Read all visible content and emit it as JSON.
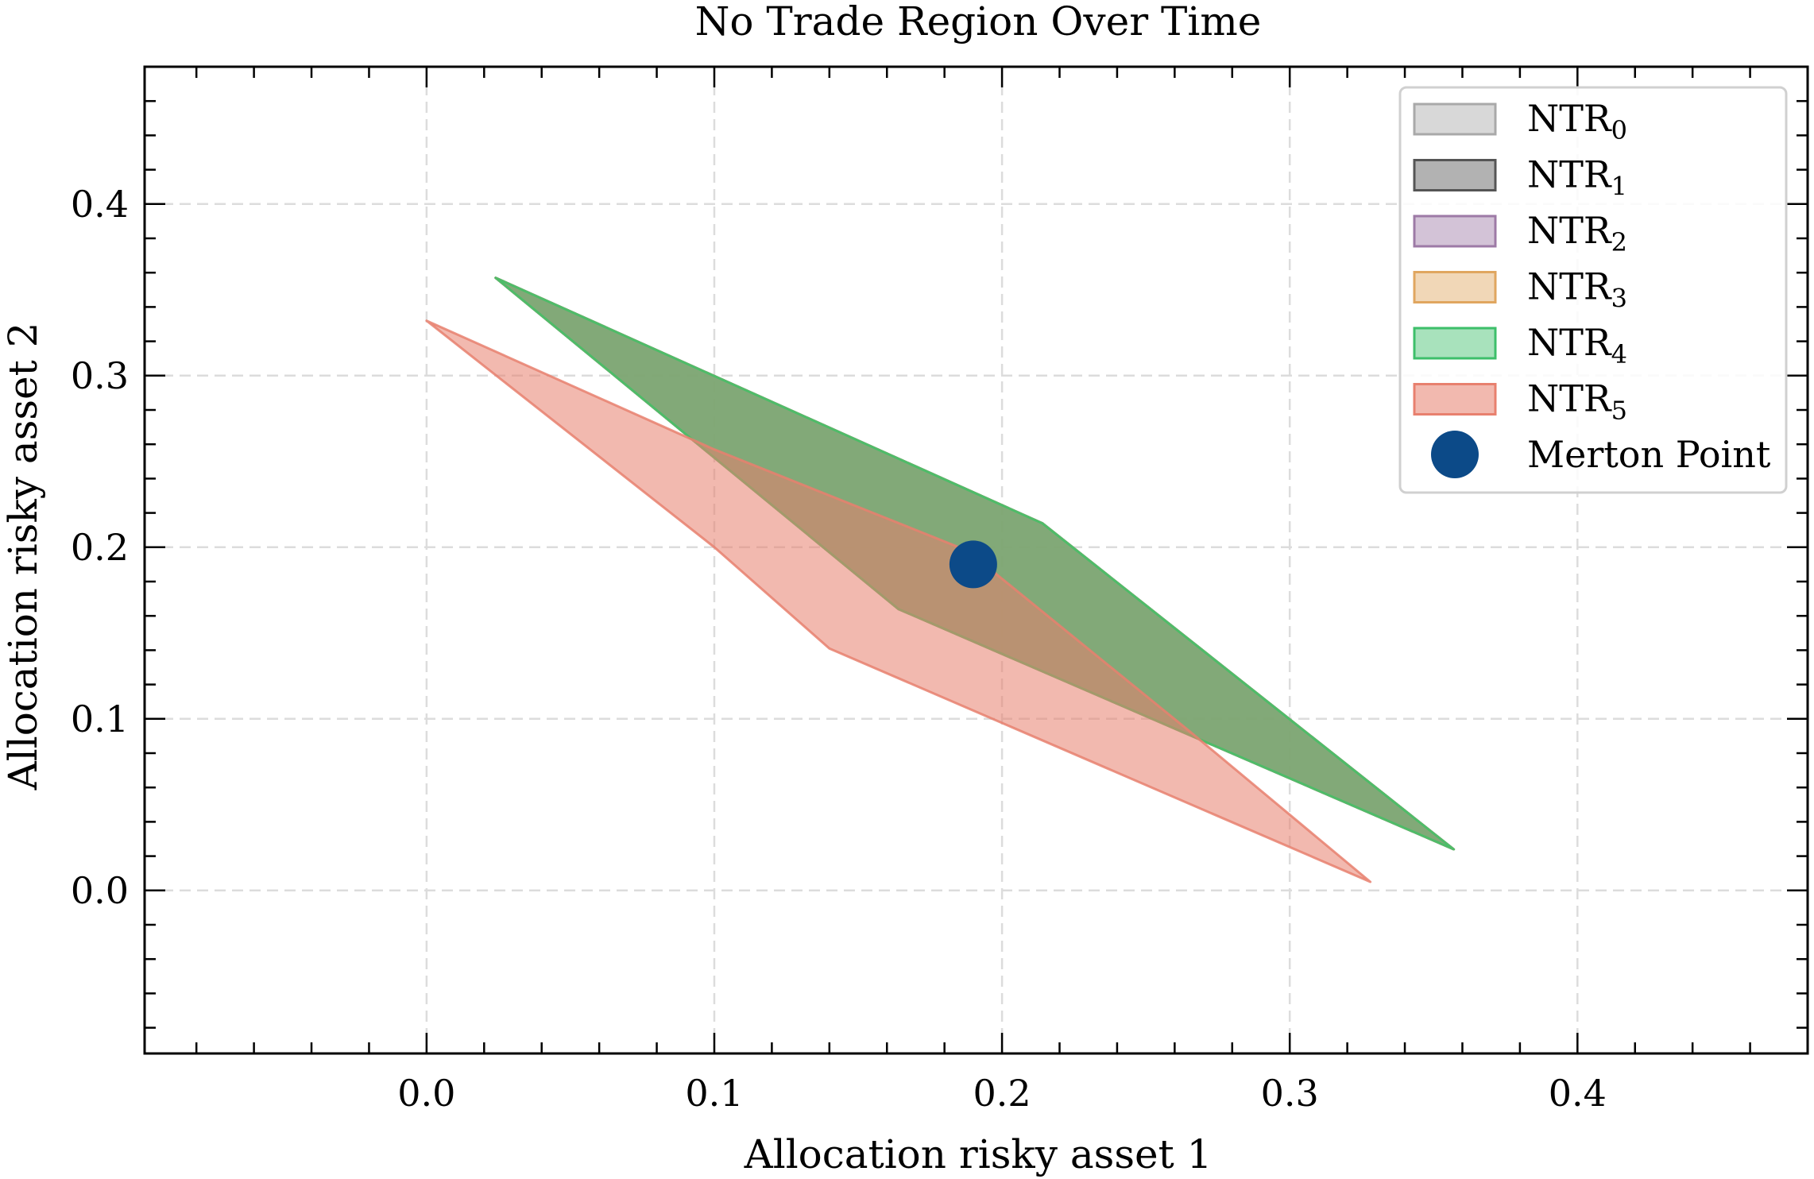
{
  "chart_data": {
    "type": "area",
    "title": "No Trade Region Over Time",
    "xlabel": "Allocation risky asset 1",
    "ylabel": "Allocation risky asset 2",
    "xlim": [
      -0.098,
      0.48
    ],
    "ylim": [
      -0.095,
      0.48
    ],
    "xticks": [
      0.0,
      0.1,
      0.2,
      0.3,
      0.4
    ],
    "yticks": [
      0.0,
      0.1,
      0.2,
      0.3,
      0.4
    ],
    "xtick_labels": [
      "0.0",
      "0.1",
      "0.2",
      "0.3",
      "0.4"
    ],
    "ytick_labels": [
      "0.0",
      "0.1",
      "0.2",
      "0.3",
      "0.4"
    ],
    "grid": true,
    "legend_position": "top-right",
    "series": [
      {
        "name": "NTR",
        "sub": "0",
        "color": "#a9a9a9",
        "alpha": 0.45,
        "polygon": [
          [
            0.024,
            0.357
          ],
          [
            0.214,
            0.214
          ],
          [
            0.357,
            0.024
          ],
          [
            0.164,
            0.164
          ]
        ]
      },
      {
        "name": "NTR",
        "sub": "1",
        "color": "#555555",
        "alpha": 0.45,
        "polygon": [
          [
            0.024,
            0.357
          ],
          [
            0.214,
            0.214
          ],
          [
            0.357,
            0.024
          ],
          [
            0.164,
            0.164
          ]
        ]
      },
      {
        "name": "NTR",
        "sub": "2",
        "color": "#9d7aa6",
        "alpha": 0.45,
        "polygon": [
          [
            0.024,
            0.357
          ],
          [
            0.214,
            0.214
          ],
          [
            0.357,
            0.024
          ],
          [
            0.164,
            0.164
          ]
        ]
      },
      {
        "name": "NTR",
        "sub": "3",
        "color": "#e0a65f",
        "alpha": 0.45,
        "polygon": [
          [
            0.024,
            0.357
          ],
          [
            0.214,
            0.214
          ],
          [
            0.357,
            0.024
          ],
          [
            0.164,
            0.164
          ]
        ]
      },
      {
        "name": "NTR",
        "sub": "4",
        "color": "#3dbf6a",
        "alpha": 0.45,
        "polygon": [
          [
            0.024,
            0.357
          ],
          [
            0.214,
            0.214
          ],
          [
            0.357,
            0.024
          ],
          [
            0.164,
            0.164
          ]
        ]
      },
      {
        "name": "NTR",
        "sub": "5",
        "color": "#e8806e",
        "alpha": 0.55,
        "polygon": [
          [
            0.0,
            0.332
          ],
          [
            0.1,
            0.257
          ],
          [
            0.188,
            0.198
          ],
          [
            0.265,
            0.093
          ],
          [
            0.328,
            0.005
          ],
          [
            0.14,
            0.141
          ],
          [
            0.1,
            0.2
          ]
        ]
      }
    ],
    "points": [
      {
        "name": "Merton Point",
        "x": 0.19,
        "y": 0.19,
        "color": "#0c4a88"
      }
    ]
  }
}
